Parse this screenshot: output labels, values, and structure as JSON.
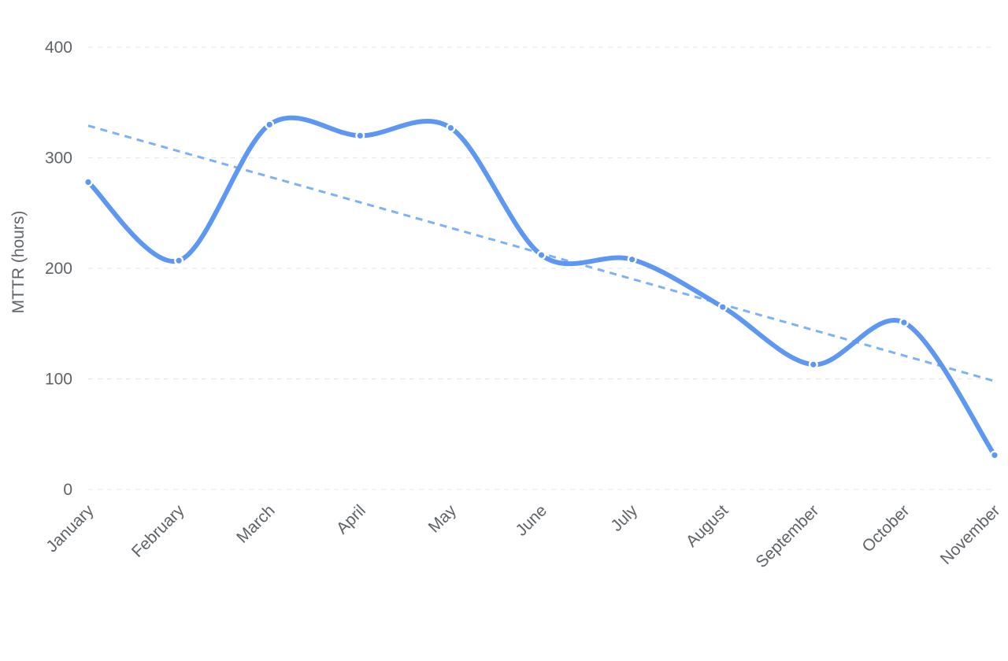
{
  "chart_data": {
    "type": "line",
    "ylabel": "MTTR (hours)",
    "ylim": [
      0,
      400
    ],
    "y_ticks": [
      0,
      100,
      200,
      300,
      400
    ],
    "grid": true,
    "categories": [
      "January",
      "February",
      "March",
      "April",
      "May",
      "June",
      "July",
      "August",
      "September",
      "October",
      "November"
    ],
    "series": [
      {
        "values": [
          278,
          207,
          330,
          320,
          327,
          212,
          208,
          165,
          113,
          151,
          31
        ],
        "color": "#5b97f3",
        "style": "smooth"
      }
    ],
    "trendline": {
      "start": 329,
      "end": 98,
      "color": "#7fb1f5",
      "style": "dashed"
    }
  }
}
